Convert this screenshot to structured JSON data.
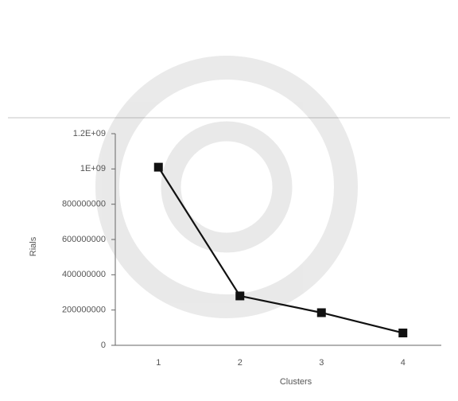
{
  "chart_data": {
    "type": "line",
    "x_label": "Clusters",
    "y_label": "Rials",
    "categories": [
      "1",
      "2",
      "3",
      "4"
    ],
    "series": [
      {
        "name": "Rials",
        "color": "#111111",
        "values": [
          1010000000,
          280000000,
          185000000,
          70000000
        ]
      }
    ],
    "ylim": [
      0,
      1200000000
    ],
    "yticks": [
      0,
      200000000,
      400000000,
      600000000,
      800000000,
      {
        "value": 1000000000,
        "label": "1E+09"
      },
      {
        "value": 1200000000,
        "label": "1.2E+09"
      }
    ],
    "grid": false
  }
}
